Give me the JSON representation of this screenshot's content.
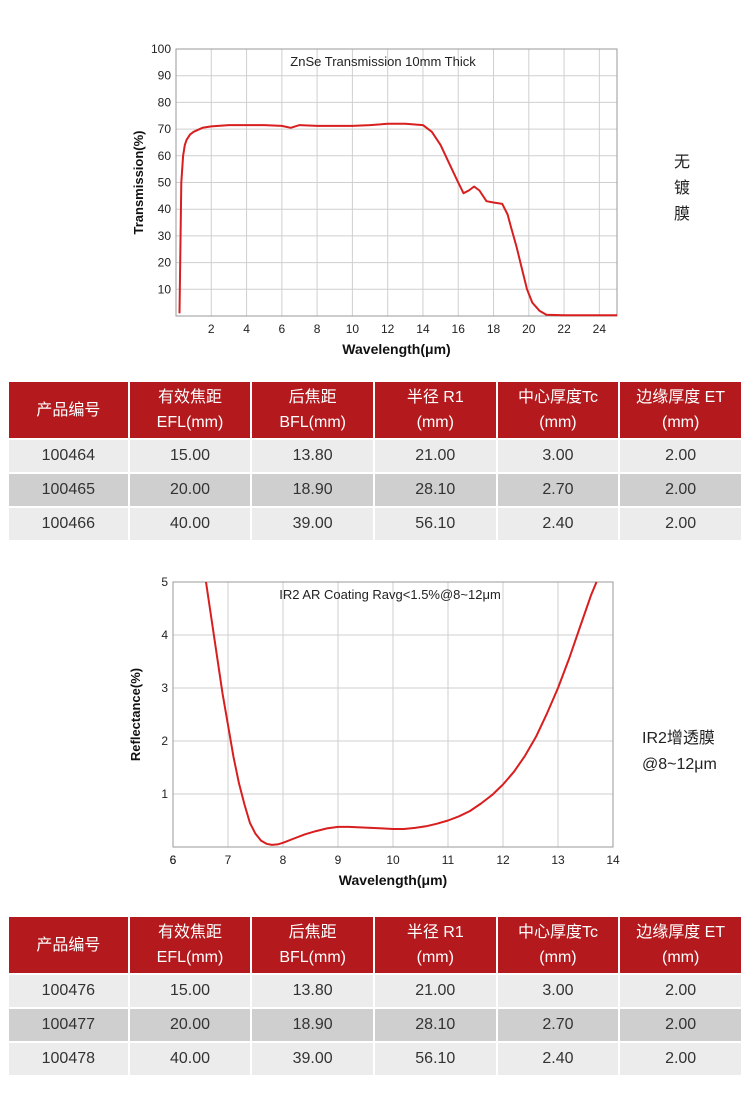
{
  "chart_data": [
    {
      "type": "line",
      "title": "ZnSe Transmission 10mm Thick",
      "xlabel": "Wavelength(μm)",
      "ylabel": "Transmission(%)",
      "xlim": [
        0,
        25
      ],
      "ylim": [
        0,
        100
      ],
      "x_ticks": [
        2,
        4,
        6,
        8,
        10,
        12,
        14,
        16,
        18,
        20,
        22,
        24
      ],
      "y_ticks": [
        10,
        20,
        30,
        40,
        50,
        60,
        70,
        80,
        90,
        100
      ],
      "grid": true,
      "color": "#d81e1e",
      "series": [
        {
          "x": [
            0.2,
            0.3,
            0.4,
            0.5,
            0.6,
            0.8,
            1.0,
            1.5,
            2.0,
            3.0,
            4.0,
            5.0,
            6.0,
            6.5,
            7.0,
            8.0,
            9.0,
            10.0,
            11.0,
            12.0,
            13.0,
            14.0,
            14.5,
            15.0,
            15.5,
            16.0,
            16.3,
            16.6,
            16.9,
            17.2,
            17.6,
            18.0,
            18.5,
            18.8,
            19.0,
            19.3,
            19.6,
            19.9,
            20.2,
            20.6,
            21.0,
            22.0,
            23.0,
            24.0,
            25.0
          ],
          "y": [
            1,
            50,
            60,
            64,
            66,
            68,
            69,
            70.5,
            71,
            71.5,
            71.5,
            71.5,
            71.2,
            70.5,
            71.5,
            71.2,
            71.2,
            71.2,
            71.5,
            72,
            72,
            71.5,
            69,
            64,
            57,
            50,
            46,
            47,
            48.5,
            47,
            43,
            42.5,
            42,
            38,
            33,
            26,
            18,
            10,
            5,
            2,
            0.5,
            0.3,
            0.3,
            0.3,
            0.3
          ]
        }
      ]
    },
    {
      "type": "line",
      "title": "IR2 AR Coating Ravg<1.5%@8~12μm",
      "xlabel": "Wavelength(μm)",
      "ylabel": "Reflectance(%)",
      "xlim": [
        6,
        14
      ],
      "ylim": [
        0,
        5
      ],
      "x_ticks": [
        6,
        7,
        8,
        9,
        10,
        11,
        12,
        13,
        14
      ],
      "y_ticks": [
        1,
        2,
        3,
        4,
        5
      ],
      "grid": true,
      "color": "#d81e1e",
      "series": [
        {
          "x": [
            6.6,
            6.7,
            6.8,
            6.9,
            7.0,
            7.1,
            7.2,
            7.3,
            7.4,
            7.5,
            7.6,
            7.7,
            7.8,
            7.9,
            8.0,
            8.2,
            8.4,
            8.6,
            8.8,
            9.0,
            9.2,
            9.4,
            9.6,
            9.8,
            10.0,
            10.2,
            10.4,
            10.6,
            10.8,
            11.0,
            11.2,
            11.4,
            11.6,
            11.8,
            12.0,
            12.2,
            12.4,
            12.6,
            12.8,
            13.0,
            13.2,
            13.4,
            13.6,
            13.7
          ],
          "y": [
            5.0,
            4.3,
            3.6,
            2.9,
            2.3,
            1.7,
            1.2,
            0.8,
            0.45,
            0.25,
            0.12,
            0.06,
            0.04,
            0.05,
            0.08,
            0.16,
            0.24,
            0.3,
            0.35,
            0.38,
            0.38,
            0.37,
            0.36,
            0.35,
            0.34,
            0.34,
            0.36,
            0.39,
            0.44,
            0.5,
            0.58,
            0.68,
            0.82,
            0.98,
            1.18,
            1.42,
            1.72,
            2.08,
            2.52,
            3.0,
            3.55,
            4.15,
            4.75,
            5.0
          ]
        }
      ]
    }
  ],
  "notes": {
    "uncoated": [
      "无",
      "镀",
      "膜"
    ],
    "coated_line1": "IR2增透膜",
    "coated_line2": "@8~12μm"
  },
  "table1": {
    "headers": [
      [
        "产品编号"
      ],
      [
        "有效焦距",
        "EFL(mm)"
      ],
      [
        "后焦距",
        "BFL(mm)"
      ],
      [
        "半径 R1",
        "(mm)"
      ],
      [
        "中心厚度Tc",
        "(mm)"
      ],
      [
        "边缘厚度 ET",
        "(mm)"
      ]
    ],
    "rows": [
      [
        "100464",
        "15.00",
        "13.80",
        "21.00",
        "3.00",
        "2.00"
      ],
      [
        "100465",
        "20.00",
        "18.90",
        "28.10",
        "2.70",
        "2.00"
      ],
      [
        "100466",
        "40.00",
        "39.00",
        "56.10",
        "2.40",
        "2.00"
      ]
    ]
  },
  "table2": {
    "headers": [
      [
        "产品编号"
      ],
      [
        "有效焦距",
        "EFL(mm)"
      ],
      [
        "后焦距",
        "BFL(mm)"
      ],
      [
        "半径 R1",
        "(mm)"
      ],
      [
        "中心厚度Tc",
        "(mm)"
      ],
      [
        "边缘厚度 ET",
        "(mm)"
      ]
    ],
    "rows": [
      [
        "100476",
        "15.00",
        "13.80",
        "21.00",
        "3.00",
        "2.00"
      ],
      [
        "100477",
        "20.00",
        "18.90",
        "28.10",
        "2.70",
        "2.00"
      ],
      [
        "100478",
        "40.00",
        "39.00",
        "56.10",
        "2.40",
        "2.00"
      ]
    ]
  }
}
